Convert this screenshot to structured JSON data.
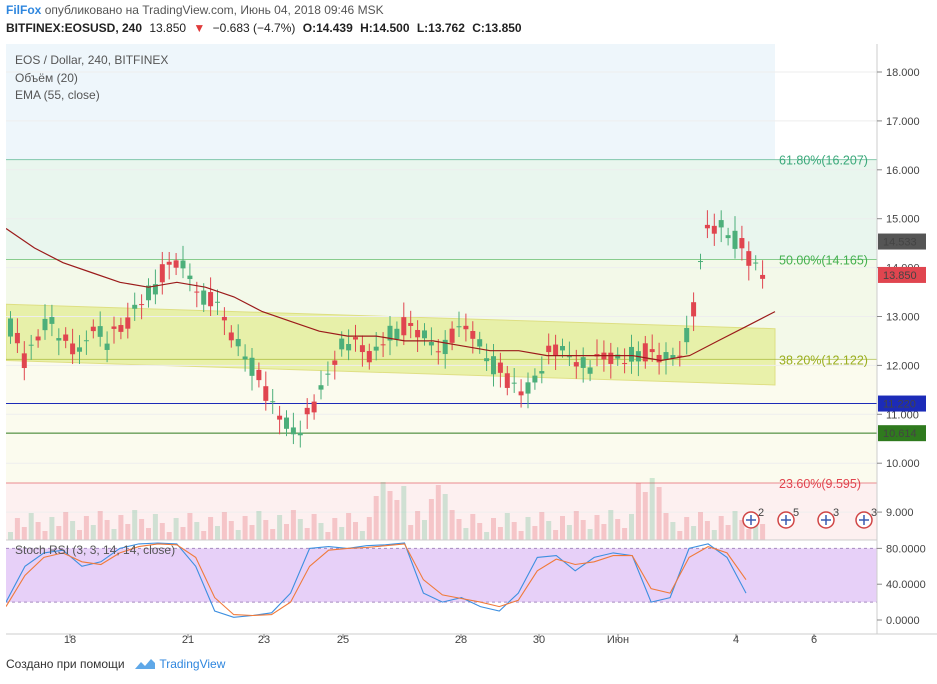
{
  "header": {
    "brand": "FilFox",
    "published": "опубликовано на TradingView.com, Июнь 04, 2018 09:46 MSK",
    "symbol": "BITFINEX:EOSUSD, 240",
    "last": "13.850",
    "change": "−0.683 (−4.7%)",
    "open": "O:14.439",
    "high": "H:14.500",
    "low": "L:13.762",
    "close": "C:13.850"
  },
  "legend": {
    "title": "EOS / Dollar, 240, BITFINEX",
    "volume": "Объём (20)",
    "ema": "EMA (55, close)",
    "stoch": "Stoch RSI (3, 3, 14, 14, close)"
  },
  "price_axis": {
    "ticks": [
      "18.000",
      "17.000",
      "16.000",
      "15.000",
      "14.000",
      "13.000",
      "12.000",
      "11.000",
      "10.000",
      "9.000"
    ],
    "badges": [
      {
        "label": "14.533",
        "value": 14.533,
        "color": "#555555"
      },
      {
        "label": "13.850",
        "value": 13.85,
        "color": "#e0454f"
      },
      {
        "label": "11.220",
        "value": 11.22,
        "color": "#1c2bb8"
      },
      {
        "label": "10.614",
        "value": 10.614,
        "color": "#2f7a1e"
      }
    ]
  },
  "stoch_axis": {
    "ticks": [
      "80.0000",
      "40.0000",
      "0.0000"
    ]
  },
  "time_axis": {
    "ticks": [
      "18",
      "21",
      "23",
      "25",
      "28",
      "30",
      "Июн",
      "4",
      "6"
    ]
  },
  "fibonacci": [
    {
      "label": "61.80%(16.207)",
      "value": 16.207,
      "color": "#3aa87a"
    },
    {
      "label": "50.00%(14.165)",
      "value": 14.165,
      "color": "#44b04f"
    },
    {
      "label": "38.20%(12.122)",
      "value": 12.122,
      "color": "#9aae1f"
    },
    {
      "label": "23.60%(9.595)",
      "value": 9.595,
      "color": "#e0454f"
    }
  ],
  "horizontal_levels": [
    {
      "value": 11.22,
      "color": "#1c2bb8"
    },
    {
      "value": 10.614,
      "color": "#2f7a1e"
    }
  ],
  "events": [
    {
      "label": "2"
    },
    {
      "label": "5"
    },
    {
      "label": "3"
    },
    {
      "label": "3"
    }
  ],
  "footer": {
    "made_with": "Создано при помощи",
    "brand": "TradingView"
  },
  "colors": {
    "up": "#4caf7a",
    "down": "#e0454f",
    "ema": "#9b1b1b",
    "channel": "#e5ef9a",
    "stoch_band": "#e3c8f7"
  },
  "chart_data": {
    "type": "candlestick",
    "symbol": "BITFINEX:EOSUSD",
    "interval": "240",
    "ylim": [
      8.7,
      18.4
    ],
    "close_series": [
      12.8,
      12.1,
      12.6,
      13.0,
      12.4,
      12.2,
      12.9,
      12.5,
      12.7,
      13.2,
      13.5,
      13.9,
      14.1,
      13.8,
      13.4,
      13.1,
      12.6,
      12.2,
      11.6,
      11.1,
      10.7,
      10.8,
      11.2,
      12.0,
      12.6,
      12.3,
      12.2,
      12.6,
      12.8,
      12.7,
      12.5,
      12.4,
      12.6,
      12.8,
      12.3,
      11.9,
      11.6,
      11.4,
      12.0,
      12.3,
      12.2,
      12.1,
      12.0,
      12.2,
      12.1,
      12.3,
      12.2,
      12.1,
      12.3,
      13.0,
      14.8,
      14.9,
      14.6,
      14.2,
      13.85
    ],
    "ema_series": [
      14.8,
      14.4,
      14.1,
      13.9,
      13.7,
      13.6,
      13.7,
      13.6,
      13.4,
      13.1,
      12.9,
      12.7,
      12.6,
      12.6,
      12.5,
      12.5,
      12.4,
      12.3,
      12.3,
      12.2,
      12.2,
      12.2,
      12.2,
      12.1,
      12.2,
      12.5,
      12.8,
      13.1
    ],
    "stoch_k": [
      20,
      60,
      75,
      78,
      60,
      65,
      80,
      85,
      86,
      85,
      60,
      10,
      3,
      5,
      8,
      30,
      80,
      82,
      80,
      83,
      84,
      86,
      30,
      20,
      25,
      15,
      10,
      30,
      70,
      72,
      55,
      70,
      75,
      72,
      20,
      25,
      80,
      85,
      70,
      30
    ],
    "stoch_d": [
      15,
      50,
      70,
      75,
      65,
      62,
      75,
      82,
      85,
      84,
      70,
      25,
      6,
      5,
      6,
      20,
      60,
      78,
      80,
      81,
      83,
      85,
      45,
      28,
      24,
      20,
      15,
      22,
      55,
      68,
      62,
      65,
      72,
      72,
      35,
      30,
      70,
      82,
      75,
      45
    ]
  }
}
